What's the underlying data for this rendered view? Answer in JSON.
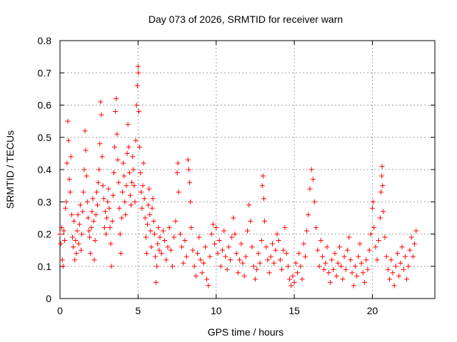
{
  "chart_data": {
    "type": "scatter",
    "title": "Day 073 of 2026, SRMTID for receiver warn",
    "xlabel": "GPS time / hours",
    "ylabel": "SRMTID / TECUs",
    "xlim": [
      0,
      24
    ],
    "ylim": [
      0,
      0.8
    ],
    "grid": true,
    "marker": "+",
    "color": "#ff0000",
    "x_ticks": [
      0,
      5,
      10,
      15,
      20
    ],
    "x_tick_labels": [
      "0",
      "5",
      "10",
      "15",
      "20"
    ],
    "y_ticks": [
      0,
      0.1,
      0.2,
      0.3,
      0.4,
      0.5,
      0.6,
      0.7,
      0.8
    ],
    "y_tick_labels": [
      "0",
      "0.1",
      "0.2",
      "0.3",
      "0.4",
      "0.5",
      "0.6",
      "0.7",
      "0.8"
    ],
    "series": [
      {
        "name": "warn",
        "points": [
          [
            0.0,
            0.2
          ],
          [
            0.05,
            0.17
          ],
          [
            0.1,
            0.22
          ],
          [
            0.15,
            0.12
          ],
          [
            0.2,
            0.1
          ],
          [
            0.25,
            0.21
          ],
          [
            0.3,
            0.18
          ],
          [
            0.35,
            0.28
          ],
          [
            0.4,
            0.3
          ],
          [
            0.45,
            0.42
          ],
          [
            0.5,
            0.55
          ],
          [
            0.55,
            0.49
          ],
          [
            0.6,
            0.37
          ],
          [
            0.65,
            0.33
          ],
          [
            0.7,
            0.44
          ],
          [
            0.75,
            0.26
          ],
          [
            0.8,
            0.19
          ],
          [
            0.85,
            0.16
          ],
          [
            0.9,
            0.24
          ],
          [
            0.95,
            0.12
          ],
          [
            1.0,
            0.18
          ],
          [
            1.05,
            0.14
          ],
          [
            1.1,
            0.21
          ],
          [
            1.15,
            0.26
          ],
          [
            1.2,
            0.17
          ],
          [
            1.25,
            0.23
          ],
          [
            1.3,
            0.29
          ],
          [
            1.35,
            0.15
          ],
          [
            1.4,
            0.2
          ],
          [
            1.45,
            0.27
          ],
          [
            1.5,
            0.33
          ],
          [
            1.55,
            0.4
          ],
          [
            1.6,
            0.52
          ],
          [
            1.65,
            0.46
          ],
          [
            1.7,
            0.38
          ],
          [
            1.75,
            0.3
          ],
          [
            1.8,
            0.25
          ],
          [
            1.85,
            0.21
          ],
          [
            1.9,
            0.19
          ],
          [
            1.95,
            0.14
          ],
          [
            2.0,
            0.22
          ],
          [
            2.05,
            0.27
          ],
          [
            2.1,
            0.31
          ],
          [
            2.15,
            0.24
          ],
          [
            2.2,
            0.12
          ],
          [
            2.25,
            0.18
          ],
          [
            2.3,
            0.26
          ],
          [
            2.35,
            0.33
          ],
          [
            2.4,
            0.29
          ],
          [
            2.45,
            0.36
          ],
          [
            2.5,
            0.4
          ],
          [
            2.55,
            0.48
          ],
          [
            2.6,
            0.61
          ],
          [
            2.65,
            0.57
          ],
          [
            2.7,
            0.44
          ],
          [
            2.75,
            0.35
          ],
          [
            2.8,
            0.31
          ],
          [
            2.85,
            0.22
          ],
          [
            2.9,
            0.27
          ],
          [
            2.95,
            0.2
          ],
          [
            3.0,
            0.25
          ],
          [
            3.05,
            0.3
          ],
          [
            3.1,
            0.34
          ],
          [
            3.15,
            0.28
          ],
          [
            3.2,
            0.22
          ],
          [
            3.25,
            0.17
          ],
          [
            3.3,
            0.1
          ],
          [
            3.35,
            0.24
          ],
          [
            3.4,
            0.32
          ],
          [
            3.45,
            0.39
          ],
          [
            3.5,
            0.47
          ],
          [
            3.55,
            0.58
          ],
          [
            3.6,
            0.62
          ],
          [
            3.65,
            0.51
          ],
          [
            3.7,
            0.43
          ],
          [
            3.75,
            0.36
          ],
          [
            3.8,
            0.28
          ],
          [
            3.85,
            0.2
          ],
          [
            3.9,
            0.14
          ],
          [
            3.95,
            0.25
          ],
          [
            4.0,
            0.33
          ],
          [
            4.05,
            0.42
          ],
          [
            4.1,
            0.38
          ],
          [
            4.15,
            0.3
          ],
          [
            4.2,
            0.26
          ],
          [
            4.25,
            0.35
          ],
          [
            4.3,
            0.45
          ],
          [
            4.35,
            0.54
          ],
          [
            4.4,
            0.47
          ],
          [
            4.45,
            0.39
          ],
          [
            4.5,
            0.32
          ],
          [
            4.55,
            0.29
          ],
          [
            4.6,
            0.36
          ],
          [
            4.65,
            0.44
          ],
          [
            4.7,
            0.4
          ],
          [
            4.75,
            0.35
          ],
          [
            4.8,
            0.3
          ],
          [
            4.85,
            0.49
          ],
          [
            4.9,
            0.6
          ],
          [
            4.95,
            0.66
          ],
          [
            5.0,
            0.72
          ],
          [
            5.02,
            0.7
          ],
          [
            5.05,
            0.58
          ],
          [
            5.1,
            0.47
          ],
          [
            5.15,
            0.39
          ],
          [
            5.2,
            0.33
          ],
          [
            5.25,
            0.28
          ],
          [
            5.3,
            0.35
          ],
          [
            5.35,
            0.42
          ],
          [
            5.4,
            0.31
          ],
          [
            5.45,
            0.25
          ],
          [
            5.5,
            0.19
          ],
          [
            5.55,
            0.14
          ],
          [
            5.6,
            0.23
          ],
          [
            5.65,
            0.29
          ],
          [
            5.7,
            0.34
          ],
          [
            5.75,
            0.26
          ],
          [
            5.8,
            0.21
          ],
          [
            5.85,
            0.16
          ],
          [
            5.9,
            0.28
          ],
          [
            5.95,
            0.31
          ],
          [
            6.0,
            0.24
          ],
          [
            6.05,
            0.2
          ],
          [
            6.1,
            0.13
          ],
          [
            6.15,
            0.05
          ],
          [
            6.2,
            0.1
          ],
          [
            6.25,
            0.17
          ],
          [
            6.3,
            0.22
          ],
          [
            6.35,
            0.15
          ],
          [
            6.4,
            0.19
          ],
          [
            6.5,
            0.14
          ],
          [
            6.6,
            0.21
          ],
          [
            6.7,
            0.18
          ],
          [
            6.8,
            0.12
          ],
          [
            6.9,
            0.16
          ],
          [
            7.0,
            0.22
          ],
          [
            7.1,
            0.15
          ],
          [
            7.2,
            0.1
          ],
          [
            7.3,
            0.19
          ],
          [
            7.4,
            0.24
          ],
          [
            7.5,
            0.39
          ],
          [
            7.55,
            0.42
          ],
          [
            7.6,
            0.33
          ],
          [
            7.7,
            0.2
          ],
          [
            7.8,
            0.16
          ],
          [
            7.9,
            0.11
          ],
          [
            8.0,
            0.18
          ],
          [
            8.1,
            0.13
          ],
          [
            8.2,
            0.43
          ],
          [
            8.25,
            0.4
          ],
          [
            8.3,
            0.36
          ],
          [
            8.35,
            0.3
          ],
          [
            8.4,
            0.22
          ],
          [
            8.5,
            0.15
          ],
          [
            8.6,
            0.1
          ],
          [
            8.7,
            0.07
          ],
          [
            8.8,
            0.14
          ],
          [
            8.9,
            0.19
          ],
          [
            9.0,
            0.12
          ],
          [
            9.1,
            0.08
          ],
          [
            9.2,
            0.11
          ],
          [
            9.3,
            0.16
          ],
          [
            9.4,
            0.06
          ],
          [
            9.5,
            0.04
          ],
          [
            9.6,
            0.13
          ],
          [
            9.7,
            0.2
          ],
          [
            9.8,
            0.23
          ],
          [
            9.9,
            0.17
          ],
          [
            10.0,
            0.22
          ],
          [
            10.1,
            0.14
          ],
          [
            10.2,
            0.18
          ],
          [
            10.3,
            0.1
          ],
          [
            10.4,
            0.15
          ],
          [
            10.5,
            0.21
          ],
          [
            10.6,
            0.13
          ],
          [
            10.7,
            0.09
          ],
          [
            10.8,
            0.16
          ],
          [
            10.9,
            0.12
          ],
          [
            11.0,
            0.19
          ],
          [
            11.1,
            0.25
          ],
          [
            11.2,
            0.2
          ],
          [
            11.3,
            0.14
          ],
          [
            11.4,
            0.08
          ],
          [
            11.5,
            0.12
          ],
          [
            11.6,
            0.17
          ],
          [
            11.7,
            0.11
          ],
          [
            11.8,
            0.07
          ],
          [
            11.9,
            0.13
          ],
          [
            12.0,
            0.21
          ],
          [
            12.1,
            0.29
          ],
          [
            12.2,
            0.24
          ],
          [
            12.3,
            0.16
          ],
          [
            12.4,
            0.1
          ],
          [
            12.5,
            0.06
          ],
          [
            12.6,
            0.09
          ],
          [
            12.7,
            0.14
          ],
          [
            12.8,
            0.11
          ],
          [
            12.9,
            0.18
          ],
          [
            12.95,
            0.35
          ],
          [
            13.0,
            0.38
          ],
          [
            13.05,
            0.31
          ],
          [
            13.1,
            0.24
          ],
          [
            13.2,
            0.16
          ],
          [
            13.3,
            0.12
          ],
          [
            13.4,
            0.08
          ],
          [
            13.5,
            0.13
          ],
          [
            13.6,
            0.17
          ],
          [
            13.7,
            0.11
          ],
          [
            13.8,
            0.15
          ],
          [
            13.9,
            0.2
          ],
          [
            14.0,
            0.18
          ],
          [
            14.1,
            0.12
          ],
          [
            14.2,
            0.09
          ],
          [
            14.3,
            0.15
          ],
          [
            14.4,
            0.22
          ],
          [
            14.5,
            0.14
          ],
          [
            14.6,
            0.1
          ],
          [
            14.7,
            0.06
          ],
          [
            14.8,
            0.04
          ],
          [
            14.9,
            0.07
          ],
          [
            15.0,
            0.05
          ],
          [
            15.1,
            0.11
          ],
          [
            15.2,
            0.08
          ],
          [
            15.3,
            0.14
          ],
          [
            15.4,
            0.1
          ],
          [
            15.5,
            0.06
          ],
          [
            15.6,
            0.17
          ],
          [
            15.7,
            0.13
          ],
          [
            15.8,
            0.21
          ],
          [
            15.9,
            0.26
          ],
          [
            16.0,
            0.34
          ],
          [
            16.1,
            0.4
          ],
          [
            16.2,
            0.37
          ],
          [
            16.3,
            0.3
          ],
          [
            16.4,
            0.22
          ],
          [
            16.5,
            0.15
          ],
          [
            16.6,
            0.1
          ],
          [
            16.7,
            0.18
          ],
          [
            16.8,
            0.13
          ],
          [
            16.9,
            0.09
          ],
          [
            17.0,
            0.11
          ],
          [
            17.1,
            0.16
          ],
          [
            17.2,
            0.08
          ],
          [
            17.3,
            0.05
          ],
          [
            17.4,
            0.12
          ],
          [
            17.5,
            0.09
          ],
          [
            17.6,
            0.14
          ],
          [
            17.7,
            0.07
          ],
          [
            17.8,
            0.11
          ],
          [
            17.9,
            0.16
          ],
          [
            18.0,
            0.1
          ],
          [
            18.1,
            0.06
          ],
          [
            18.2,
            0.13
          ],
          [
            18.3,
            0.09
          ],
          [
            18.4,
            0.15
          ],
          [
            18.5,
            0.19
          ],
          [
            18.6,
            0.12
          ],
          [
            18.7,
            0.08
          ],
          [
            18.8,
            0.04
          ],
          [
            18.9,
            0.1
          ],
          [
            19.0,
            0.07
          ],
          [
            19.1,
            0.13
          ],
          [
            19.2,
            0.17
          ],
          [
            19.3,
            0.11
          ],
          [
            19.4,
            0.08
          ],
          [
            19.5,
            0.05
          ],
          [
            19.6,
            0.12
          ],
          [
            19.7,
            0.09
          ],
          [
            19.8,
            0.15
          ],
          [
            19.9,
            0.2
          ],
          [
            20.0,
            0.28
          ],
          [
            20.05,
            0.3
          ],
          [
            20.1,
            0.22
          ],
          [
            20.2,
            0.16
          ],
          [
            20.3,
            0.12
          ],
          [
            20.4,
            0.18
          ],
          [
            20.5,
            0.25
          ],
          [
            20.55,
            0.33
          ],
          [
            20.6,
            0.38
          ],
          [
            20.62,
            0.41
          ],
          [
            20.65,
            0.35
          ],
          [
            20.7,
            0.27
          ],
          [
            20.8,
            0.19
          ],
          [
            20.9,
            0.13
          ],
          [
            21.0,
            0.09
          ],
          [
            21.1,
            0.06
          ],
          [
            21.2,
            0.12
          ],
          [
            21.3,
            0.08
          ],
          [
            21.4,
            0.04
          ],
          [
            21.5,
            0.1
          ],
          [
            21.6,
            0.14
          ],
          [
            21.7,
            0.07
          ],
          [
            21.8,
            0.11
          ],
          [
            21.9,
            0.16
          ],
          [
            22.0,
            0.09
          ],
          [
            22.1,
            0.13
          ],
          [
            22.2,
            0.06
          ],
          [
            22.3,
            0.1
          ],
          [
            22.4,
            0.15
          ],
          [
            22.5,
            0.19
          ],
          [
            22.6,
            0.13
          ],
          [
            22.7,
            0.17
          ],
          [
            22.8,
            0.21
          ]
        ]
      }
    ]
  }
}
